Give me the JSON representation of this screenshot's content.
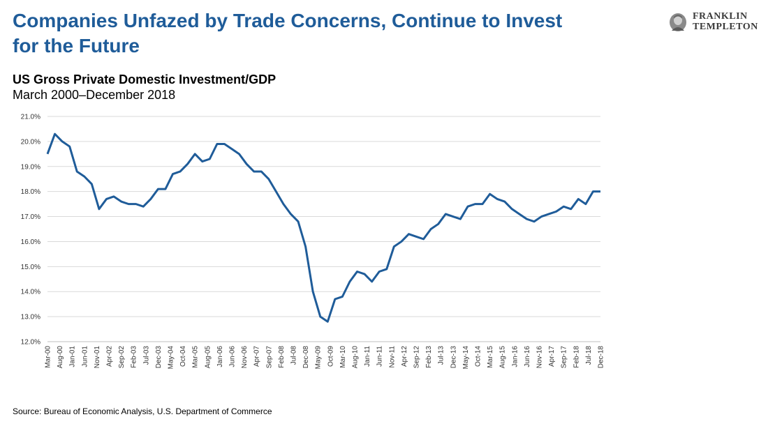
{
  "header": {
    "title": "Companies Unfazed by Trade Concerns, Continue to Invest for the Future",
    "subtitle": "US Gross Private Domestic Investment/GDP",
    "date_range": "March 2000–December 2018",
    "source": "Source: Bureau of Economic Analysis, U.S. Department of Commerce"
  },
  "logo": {
    "line1": "FRANKLIN",
    "line2": "TEMPLETON"
  },
  "colors": {
    "title": "#1f5c99",
    "line": "#1f5c99",
    "grid": "#d9d9d9"
  },
  "chart_data": {
    "type": "line",
    "ylim": [
      12.0,
      21.0
    ],
    "yticks": [
      "12.0%",
      "13.0%",
      "14.0%",
      "15.0%",
      "16.0%",
      "17.0%",
      "18.0%",
      "19.0%",
      "20.0%",
      "21.0%"
    ],
    "xticks": [
      "Mar-00",
      "Aug-00",
      "Jan-01",
      "Jun-01",
      "Nov-01",
      "Apr-02",
      "Sep-02",
      "Feb-03",
      "Jul-03",
      "Dec-03",
      "May-04",
      "Oct-04",
      "Mar-05",
      "Aug-05",
      "Jan-06",
      "Jun-06",
      "Nov-06",
      "Apr-07",
      "Sep-07",
      "Feb-08",
      "Jul-08",
      "Dec-08",
      "May-09",
      "Oct-09",
      "Mar-10",
      "Aug-10",
      "Jan-11",
      "Jun-11",
      "Nov-11",
      "Apr-12",
      "Sep-12",
      "Feb-13",
      "Jul-13",
      "Dec-13",
      "May-14",
      "Oct-14",
      "Mar-15",
      "Aug-15",
      "Jan-16",
      "Jun-16",
      "Nov-16",
      "Apr-17",
      "Sep-17",
      "Feb-18",
      "Jul-18",
      "Dec-18"
    ],
    "grid": true,
    "series": [
      {
        "values": [
          19.5,
          20.3,
          20.0,
          19.8,
          18.8,
          18.6,
          18.3,
          17.3,
          17.7,
          17.8,
          17.6,
          17.5,
          17.5,
          17.4,
          17.7,
          18.1,
          18.1,
          18.7,
          18.8,
          19.1,
          19.5,
          19.2,
          19.3,
          19.9,
          19.9,
          19.7,
          19.5,
          19.1,
          18.8,
          18.8,
          18.5,
          18.0,
          17.5,
          17.1,
          16.8,
          15.8,
          14.0,
          13.0,
          12.8,
          13.7,
          13.8,
          14.4,
          14.8,
          14.7,
          14.4,
          14.8,
          14.9,
          15.8,
          16.0,
          16.3,
          16.2,
          16.1,
          16.5,
          16.7,
          17.1,
          17.0,
          16.9,
          17.4,
          17.5,
          17.5,
          17.9,
          17.7,
          17.6,
          17.3,
          17.1,
          16.9,
          16.8,
          17.0,
          17.1,
          17.2,
          17.4,
          17.3,
          17.7,
          17.5,
          18.0,
          18.0
        ]
      }
    ]
  }
}
